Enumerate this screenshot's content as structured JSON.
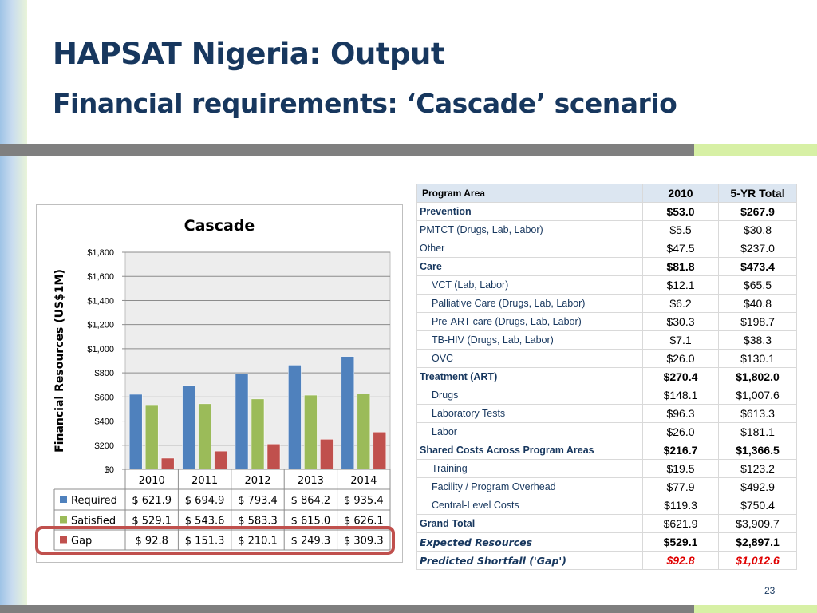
{
  "slide": {
    "title": "HAPSAT Nigeria: Output",
    "subtitle": "Financial requirements: ‘Cascade’ scenario",
    "page_number": "23"
  },
  "chart_data": {
    "type": "bar",
    "title": "Cascade",
    "ylabel": "Financial Resources (US$1M)",
    "xlabel": "",
    "categories": [
      "2010",
      "2011",
      "2012",
      "2013",
      "2014"
    ],
    "ylim": [
      0,
      1800
    ],
    "yticks": [
      "$0",
      "$200",
      "$400",
      "$600",
      "$800",
      "$1,000",
      "$1,200",
      "$1,400",
      "$1,600",
      "$1,800"
    ],
    "grid": true,
    "series": [
      {
        "name": "Required",
        "color": "#4f81bd",
        "values": [
          621.9,
          694.9,
          793.4,
          864.2,
          935.4
        ],
        "labels": [
          "$ 621.9",
          "$ 694.9",
          "$ 793.4",
          "$ 864.2",
          "$ 935.4"
        ]
      },
      {
        "name": "Satisfied",
        "color": "#9bbb59",
        "values": [
          529.1,
          543.6,
          583.3,
          615.0,
          626.1
        ],
        "labels": [
          "$ 529.1",
          "$ 543.6",
          "$ 583.3",
          "$ 615.0",
          "$ 626.1"
        ]
      },
      {
        "name": "Gap",
        "color": "#c0504d",
        "values": [
          92.8,
          151.3,
          210.1,
          249.3,
          309.3
        ],
        "labels": [
          "$ 92.8",
          "$ 151.3",
          "$ 210.1",
          "$ 249.3",
          "$ 309.3"
        ]
      }
    ]
  },
  "table": {
    "headers": [
      "Program Area",
      "2010",
      "5-YR Total"
    ],
    "rows": [
      {
        "label": "Prevention",
        "v2010": "$53.0",
        "total": "$267.9",
        "style": "bold"
      },
      {
        "label": "PMTCT (Drugs, Lab, Labor)",
        "v2010": "$5.5",
        "total": "$30.8",
        "style": "normal"
      },
      {
        "label": "Other",
        "v2010": "$47.5",
        "total": "$237.0",
        "style": "normal"
      },
      {
        "label": "Care",
        "v2010": "$81.8",
        "total": "$473.4",
        "style": "bold"
      },
      {
        "label": "VCT (Lab, Labor)",
        "v2010": "$12.1",
        "total": "$65.5",
        "style": "indent"
      },
      {
        "label": "Palliative Care (Drugs, Lab, Labor)",
        "v2010": "$6.2",
        "total": "$40.8",
        "style": "indent"
      },
      {
        "label": "Pre-ART care (Drugs, Lab, Labor)",
        "v2010": "$30.3",
        "total": "$198.7",
        "style": "indent"
      },
      {
        "label": "TB-HIV (Drugs, Lab, Labor)",
        "v2010": "$7.1",
        "total": "$38.3",
        "style": "indent"
      },
      {
        "label": "OVC",
        "v2010": "$26.0",
        "total": "$130.1",
        "style": "indent"
      },
      {
        "label": "Treatment (ART)",
        "v2010": "$270.4",
        "total": "$1,802.0",
        "style": "bold"
      },
      {
        "label": "Drugs",
        "v2010": "$148.1",
        "total": "$1,007.6",
        "style": "indent"
      },
      {
        "label": "Laboratory Tests",
        "v2010": "$96.3",
        "total": "$613.3",
        "style": "indent"
      },
      {
        "label": "Labor",
        "v2010": "$26.0",
        "total": "$181.1",
        "style": "indent"
      },
      {
        "label": "Shared Costs Across Program Areas",
        "v2010": "$216.7",
        "total": "$1,366.5",
        "style": "bold"
      },
      {
        "label": "Training",
        "v2010": "$19.5",
        "total": "$123.2",
        "style": "indent"
      },
      {
        "label": "Facility / Program Overhead",
        "v2010": "$77.9",
        "total": "$492.9",
        "style": "indent"
      },
      {
        "label": "Central-Level Costs",
        "v2010": "$119.3",
        "total": "$750.4",
        "style": "indent"
      },
      {
        "label": "Grand Total",
        "v2010": "$621.9",
        "total": "$3,909.7",
        "style": "boldlabel"
      },
      {
        "label": "Expected Resources",
        "v2010": "$529.1",
        "total": "$2,897.1",
        "style": "italic"
      },
      {
        "label": "Predicted Shortfall ('Gap')",
        "v2010": "$92.8",
        "total": "$1,012.6",
        "style": "gap"
      }
    ]
  },
  "colors": {
    "title": "#17375e",
    "highlight": "#c0504d",
    "table_header_bg": "#dce6f1",
    "gap_text": "#e00000"
  }
}
